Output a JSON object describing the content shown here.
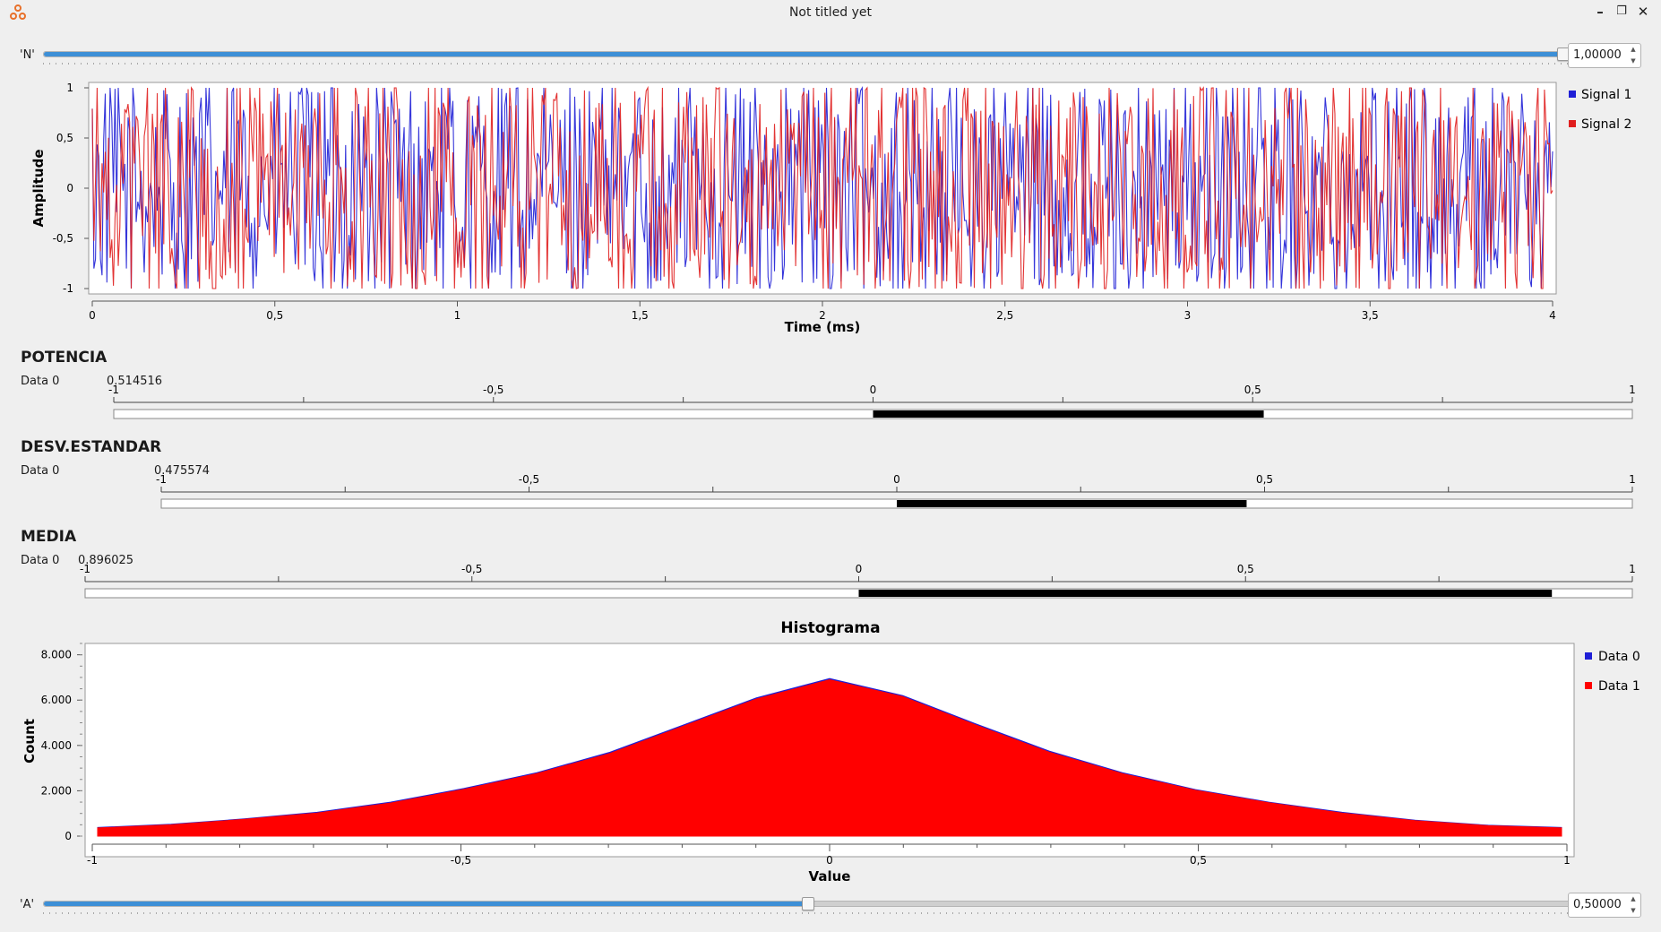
{
  "window": {
    "title": "Not titled yet",
    "icons": [
      "app-icon",
      "minimize-icon",
      "restore-icon",
      "close-icon"
    ]
  },
  "slider_n": {
    "label": "'N'",
    "value": "1,00000",
    "fraction": 0.995
  },
  "signal_plot": {
    "chart_data": {
      "type": "line",
      "xlabel": "Time (ms)",
      "ylabel": "Amplitude",
      "xlim": [
        0,
        4
      ],
      "ylim": [
        -1,
        1
      ],
      "x_ticks": [
        "0",
        "0,5",
        "1",
        "1,5",
        "2",
        "2,5",
        "3",
        "3,5",
        "4"
      ],
      "y_ticks": [
        "1",
        "0,5",
        "0",
        "-0,5",
        "-1"
      ],
      "series": [
        {
          "name": "Signal 1",
          "color": "#1f1fd6"
        },
        {
          "name": "Signal 2",
          "color": "#e01e1e"
        }
      ],
      "legend": "right"
    }
  },
  "bars": [
    {
      "title": "POTENCIA",
      "row_label": "Data 0",
      "value": 0.514516,
      "value_text": "0.514516",
      "tick_labels": [
        "-1",
        "-0,5",
        "0",
        "0,5",
        "1"
      ]
    },
    {
      "title": "DESV.ESTANDAR",
      "row_label": "Data 0",
      "value": 0.475574,
      "value_text": "0.475574",
      "tick_labels": [
        "-1",
        "-0,5",
        "0",
        "0,5",
        "1"
      ]
    },
    {
      "title": "MEDIA",
      "row_label": "Data 0",
      "value": 0.896025,
      "value_text": "0.896025",
      "tick_labels": [
        "-1",
        "-0,5",
        "0",
        "0,5",
        "1"
      ]
    }
  ],
  "histogram": {
    "chart_data": {
      "type": "area",
      "title": "Histograma",
      "xlabel": "Value",
      "ylabel": "Count",
      "xlim": [
        -1,
        1
      ],
      "ylim": [
        0,
        8500
      ],
      "x_ticks": [
        "-1",
        "-0,5",
        "0",
        "0,5",
        "1"
      ],
      "y_ticks": [
        "8.000",
        "6.000",
        "4.000",
        "2.000",
        "0"
      ],
      "x": [
        -1.0,
        -0.9,
        -0.8,
        -0.7,
        -0.6,
        -0.5,
        -0.4,
        -0.3,
        -0.2,
        -0.1,
        0.0,
        0.1,
        0.2,
        0.3,
        0.4,
        0.5,
        0.6,
        0.7,
        0.8,
        0.9,
        1.0
      ],
      "series": [
        {
          "name": "Data 0",
          "color": "#1f1fd6",
          "values": [
            380,
            520,
            760,
            1050,
            1500,
            2100,
            2800,
            3700,
            4900,
            6100,
            6950,
            6200,
            4950,
            3750,
            2800,
            2050,
            1500,
            1050,
            700,
            480,
            380
          ]
        },
        {
          "name": "Data 1",
          "color": "#ff0000",
          "values": [
            360,
            500,
            740,
            1020,
            1460,
            2060,
            2760,
            3650,
            4850,
            6050,
            6900,
            6150,
            4900,
            3700,
            2760,
            2020,
            1470,
            1020,
            680,
            460,
            360
          ]
        }
      ],
      "legend": "right"
    }
  },
  "slider_a": {
    "label": "'A'",
    "value": "0,50000",
    "fraction": 0.5
  }
}
